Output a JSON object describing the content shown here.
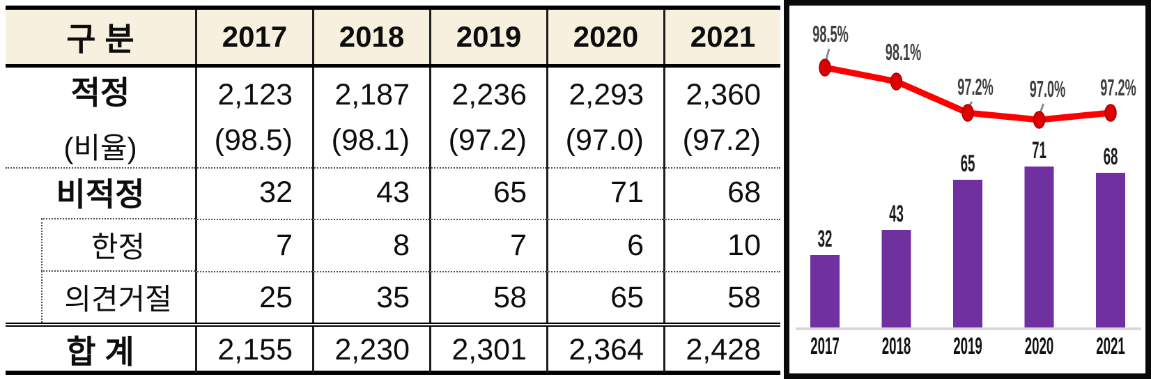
{
  "table": {
    "header": [
      "구 분",
      "2017",
      "2018",
      "2019",
      "2020",
      "2021"
    ],
    "rows": {
      "jeokjeong": {
        "label": "적정",
        "sublabel": "(비율)",
        "values": [
          "2,123",
          "2,187",
          "2,236",
          "2,293",
          "2,360"
        ],
        "ratios": [
          "(98.5)",
          "(98.1)",
          "(97.2)",
          "(97.0)",
          "(97.2)"
        ]
      },
      "bijeokjeong": {
        "label": "비적정",
        "values": [
          "32",
          "43",
          "65",
          "71",
          "68"
        ]
      },
      "hanjeong": {
        "label": "한정",
        "values": [
          "7",
          "8",
          "7",
          "6",
          "10"
        ]
      },
      "geojeol": {
        "label": "의견거절",
        "values": [
          "25",
          "35",
          "58",
          "65",
          "58"
        ]
      },
      "hapgye": {
        "label": "합 계",
        "values": [
          "2,155",
          "2,230",
          "2,301",
          "2,364",
          "2,428"
        ]
      }
    }
  },
  "chart_data": {
    "type": "bar+line",
    "categories": [
      "2017",
      "2018",
      "2019",
      "2020",
      "2021"
    ],
    "series": [
      {
        "name": "purple-bars",
        "type": "bar",
        "values": [
          32,
          43,
          65,
          71,
          68
        ],
        "labels": [
          "32",
          "43",
          "65",
          "71",
          "68"
        ],
        "color": "#7030A0"
      },
      {
        "name": "red-line",
        "type": "line",
        "values": [
          98.5,
          98.1,
          97.2,
          97.0,
          97.2
        ],
        "labels": [
          "98.5%",
          "98.1%",
          "97.2%",
          "97.0%",
          "97.2%"
        ],
        "color": "#FF0000"
      }
    ],
    "title": "",
    "xlabel": "",
    "ylabel": "",
    "legend": "none",
    "grid": false,
    "baseline_color": "#D9D9D9",
    "marker_color": "#DE0000",
    "label_color": "#3f3f3f"
  }
}
